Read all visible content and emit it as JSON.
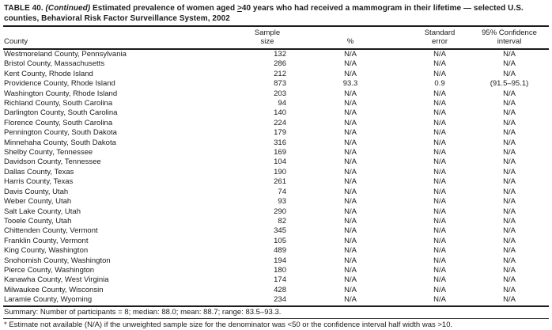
{
  "colors": {
    "text": "#1b1b1b",
    "background": "#ffffff"
  },
  "title": {
    "label": "TABLE 40. ",
    "continued": "(Continued)",
    "part_before_geq": " Estimated prevalence of women aged ",
    "geq": ">",
    "part_after_geq": "40 years who had received a mammogram in their lifetime — selected U.S. counties, Behavioral Risk Factor Surveillance System, 2002"
  },
  "columns": {
    "county": "County",
    "sample_line1": "Sample",
    "sample_line2": "size",
    "percent": "%",
    "se_line1": "Standard",
    "se_line2": "error",
    "ci_line1": "95% Confidence",
    "ci_line2": "interval"
  },
  "rows": [
    {
      "county": "Westmoreland County, Pennsylvania",
      "sample": "132",
      "percent": "N/A",
      "se": "N/A",
      "ci": "N/A"
    },
    {
      "county": "Bristol County, Massachusetts",
      "sample": "286",
      "percent": "N/A",
      "se": "N/A",
      "ci": "N/A"
    },
    {
      "county": "Kent County, Rhode Island",
      "sample": "212",
      "percent": "N/A",
      "se": "N/A",
      "ci": "N/A"
    },
    {
      "county": "Providence County, Rhode Island",
      "sample": "873",
      "percent": "93.3",
      "se": "0.9",
      "ci": "(91.5–95.1)"
    },
    {
      "county": "Washington County, Rhode Island",
      "sample": "203",
      "percent": "N/A",
      "se": "N/A",
      "ci": "N/A"
    },
    {
      "county": "Richland County, South Carolina",
      "sample": "94",
      "percent": "N/A",
      "se": "N/A",
      "ci": "N/A"
    },
    {
      "county": "Darlington County, South Carolina",
      "sample": "140",
      "percent": "N/A",
      "se": "N/A",
      "ci": "N/A"
    },
    {
      "county": "Florence County, South Carolina",
      "sample": "224",
      "percent": "N/A",
      "se": "N/A",
      "ci": "N/A"
    },
    {
      "county": "Pennington County, South Dakota",
      "sample": "179",
      "percent": "N/A",
      "se": "N/A",
      "ci": "N/A"
    },
    {
      "county": "Minnehaha County, South Dakota",
      "sample": "316",
      "percent": "N/A",
      "se": "N/A",
      "ci": "N/A"
    },
    {
      "county": "Shelby County, Tennessee",
      "sample": "169",
      "percent": "N/A",
      "se": "N/A",
      "ci": "N/A"
    },
    {
      "county": "Davidson County, Tennessee",
      "sample": "104",
      "percent": "N/A",
      "se": "N/A",
      "ci": "N/A"
    },
    {
      "county": "Dallas County, Texas",
      "sample": "190",
      "percent": "N/A",
      "se": "N/A",
      "ci": "N/A"
    },
    {
      "county": "Harris County, Texas",
      "sample": "261",
      "percent": "N/A",
      "se": "N/A",
      "ci": "N/A"
    },
    {
      "county": "Davis County, Utah",
      "sample": "74",
      "percent": "N/A",
      "se": "N/A",
      "ci": "N/A"
    },
    {
      "county": "Weber County, Utah",
      "sample": "93",
      "percent": "N/A",
      "se": "N/A",
      "ci": "N/A"
    },
    {
      "county": "Salt Lake County, Utah",
      "sample": "290",
      "percent": "N/A",
      "se": "N/A",
      "ci": "N/A"
    },
    {
      "county": "Tooele County, Utah",
      "sample": "82",
      "percent": "N/A",
      "se": "N/A",
      "ci": "N/A"
    },
    {
      "county": "Chittenden County, Vermont",
      "sample": "345",
      "percent": "N/A",
      "se": "N/A",
      "ci": "N/A"
    },
    {
      "county": "Franklin County, Vermont",
      "sample": "105",
      "percent": "N/A",
      "se": "N/A",
      "ci": "N/A"
    },
    {
      "county": "King County, Washington",
      "sample": "489",
      "percent": "N/A",
      "se": "N/A",
      "ci": "N/A"
    },
    {
      "county": "Snohomish County, Washington",
      "sample": "194",
      "percent": "N/A",
      "se": "N/A",
      "ci": "N/A"
    },
    {
      "county": "Pierce County, Washington",
      "sample": "180",
      "percent": "N/A",
      "se": "N/A",
      "ci": "N/A"
    },
    {
      "county": "Kanawha County, West Virginia",
      "sample": "174",
      "percent": "N/A",
      "se": "N/A",
      "ci": "N/A"
    },
    {
      "county": "Milwaukee County, Wisconsin",
      "sample": "428",
      "percent": "N/A",
      "se": "N/A",
      "ci": "N/A"
    },
    {
      "county": "Laramie County, Wyoming",
      "sample": "234",
      "percent": "N/A",
      "se": "N/A",
      "ci": "N/A"
    }
  ],
  "summary": "Summary: Number of participants = 8; median: 88.0; mean: 88.7; range: 83.5–93.3.",
  "footnote": "* Estimate not available (N/A) if the unweighted sample size for the denominator was <50 or the confidence interval half width was >10."
}
